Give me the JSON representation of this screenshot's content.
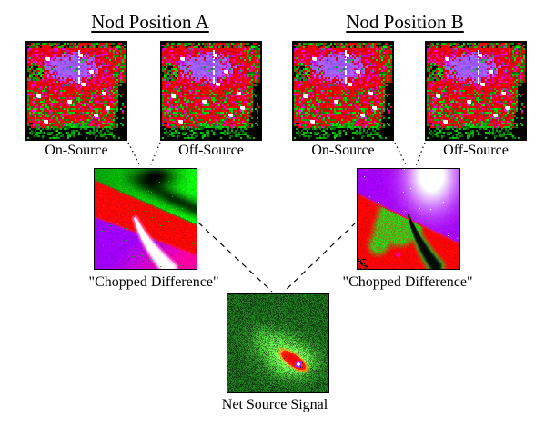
{
  "diagram": {
    "nod_a": {
      "title": "Nod Position A",
      "on_label": "On-Source",
      "off_label": "Off-Source",
      "chop_label": "\"Chopped Difference\""
    },
    "nod_b": {
      "title": "Nod Position B",
      "on_label": "On-Source",
      "off_label": "Off-Source",
      "chop_label": "\"Chopped Difference\""
    },
    "net_label": "Net Source Signal"
  },
  "palette": {
    "background": "#ffffff",
    "text": "#000000",
    "line": "#000000",
    "detector_red": "#ff0000",
    "detector_magenta": "#ff00ff",
    "detector_violet": "#8c6cff",
    "detector_green": "#00cc00",
    "detector_white": "#ffffff",
    "detector_black": "#000000",
    "chop_purple": "#a500ff",
    "chop_red": "#fa0000",
    "chop_green": "#00d200",
    "chop_white": "#ffffff",
    "chop_black": "#050a05",
    "net_green": "#22aa22",
    "net_red": "#fa0000",
    "net_core_white": "#ffffff",
    "net_core_magenta": "#aa28ff"
  }
}
